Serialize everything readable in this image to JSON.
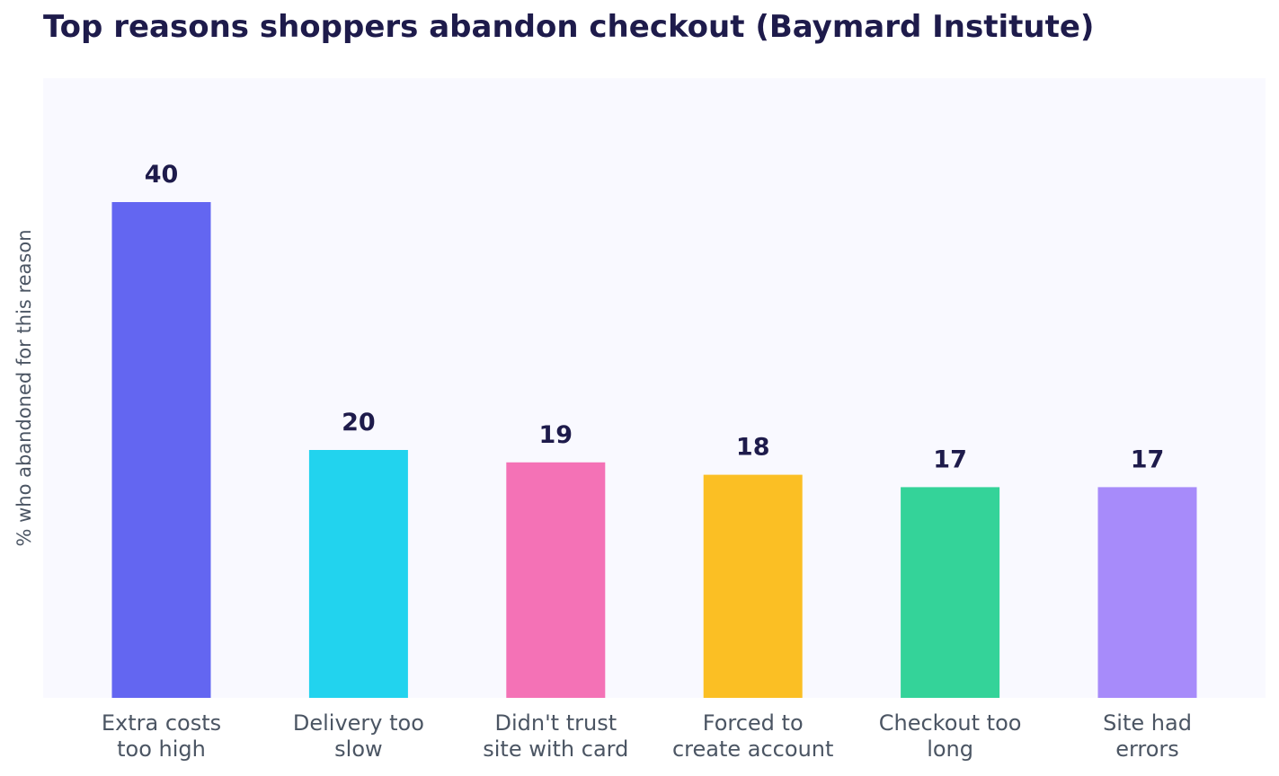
{
  "chart_data": {
    "type": "bar",
    "title": "Top reasons shoppers abandon checkout (Baymard Institute)",
    "xlabel": "",
    "ylabel": "% who abandoned for this reason",
    "ylim": [
      0,
      50
    ],
    "grid": false,
    "legend": "none",
    "categories": [
      [
        "Extra costs",
        "too high"
      ],
      [
        "Delivery too",
        "slow"
      ],
      [
        "Didn't trust",
        "site with card"
      ],
      [
        "Forced to",
        "create account"
      ],
      [
        "Checkout too",
        "long"
      ],
      [
        "Site had",
        "errors"
      ]
    ],
    "values": [
      40,
      20,
      19,
      18,
      17,
      17
    ],
    "value_labels": [
      "40",
      "20",
      "19",
      "18",
      "17",
      "17"
    ],
    "colors": [
      "#6366f1",
      "#22d3ee",
      "#f472b6",
      "#fbbf24",
      "#34d399",
      "#a78bfa"
    ],
    "plot_background": "#f9f9ff",
    "title_color": "#1e1b4b",
    "label_color": "#4b5563"
  }
}
